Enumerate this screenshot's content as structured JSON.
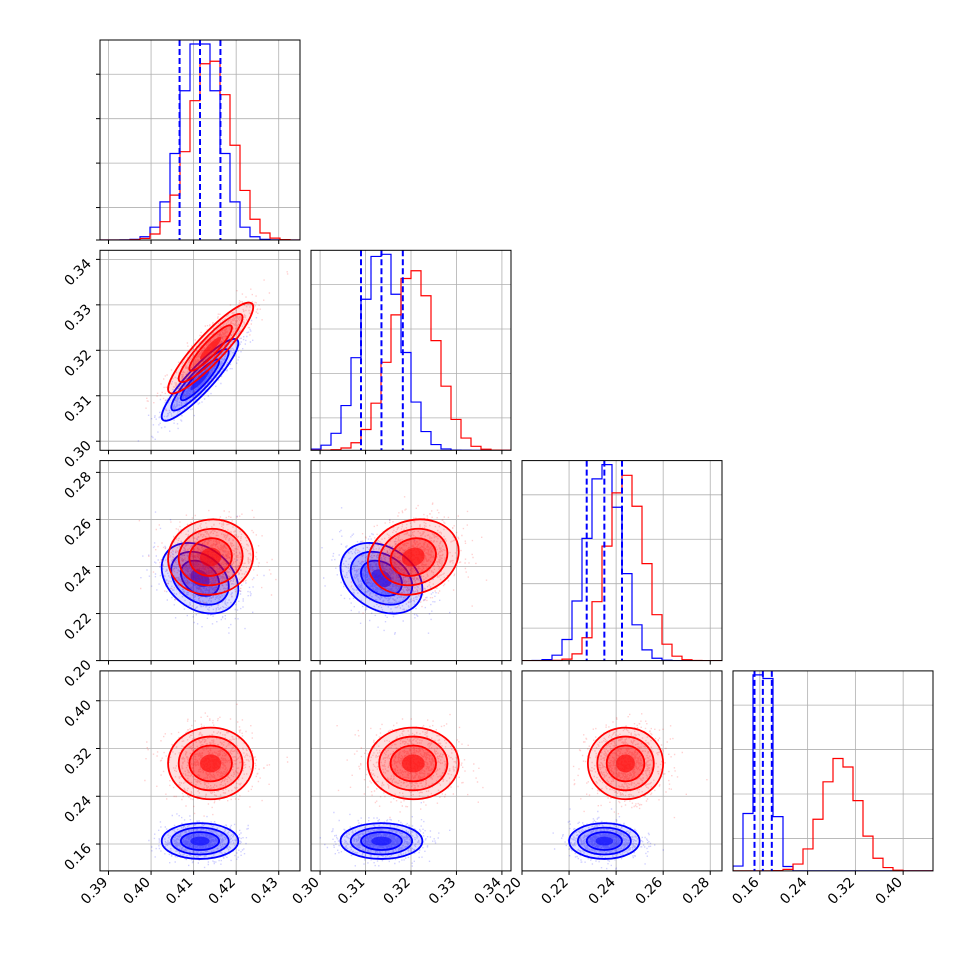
{
  "chart_data": {
    "type": "corner",
    "colors": {
      "series_a": "#0000ff",
      "series_b": "#ff0000",
      "grid": "#b0b0b0",
      "axes": "#000000"
    },
    "grid": true,
    "params": [
      {
        "range": [
          0.388,
          0.435
        ],
        "ticks": [
          "0.39",
          "0.40",
          "0.41",
          "0.42",
          "0.43"
        ],
        "tick_values": [
          0.39,
          0.4,
          0.41,
          0.42,
          0.43
        ]
      },
      {
        "range": [
          0.298,
          0.342
        ],
        "ticks": [
          "0.30",
          "0.31",
          "0.32",
          "0.33",
          "0.34"
        ],
        "tick_values": [
          0.3,
          0.31,
          0.32,
          0.33,
          0.34
        ]
      },
      {
        "range": [
          0.2,
          0.285
        ],
        "ticks": [
          "0.20",
          "0.22",
          "0.24",
          "0.26",
          "0.28"
        ],
        "tick_values": [
          0.2,
          0.22,
          0.24,
          0.26,
          0.28
        ]
      },
      {
        "range": [
          0.115,
          0.45
        ],
        "ticks": [
          "0.16",
          "0.24",
          "0.32",
          "0.40"
        ],
        "tick_values": [
          0.16,
          0.24,
          0.32,
          0.4
        ]
      }
    ],
    "series": [
      {
        "key": "series_a",
        "color": "#0000ff",
        "means": [
          0.4115,
          0.3135,
          0.235,
          0.165
        ],
        "sds": [
          0.0045,
          0.0045,
          0.0075,
          0.015
        ],
        "correlations": [
          [
            0,
            1,
            0.9
          ],
          [
            0,
            2,
            -0.3
          ],
          [
            1,
            2,
            -0.3
          ]
        ],
        "quantile_lines": [
          [
            0.4067,
            0.4115,
            0.4163
          ],
          [
            0.309,
            0.3135,
            0.3182
          ],
          [
            0.2275,
            0.235,
            0.2425
          ],
          [
            0.151,
            0.165,
            0.18
          ]
        ]
      },
      {
        "key": "series_b",
        "color": "#ff0000",
        "means": [
          0.414,
          0.3205,
          0.244,
          0.295
        ],
        "sds": [
          0.005,
          0.005,
          0.008,
          0.03
        ],
        "correlations": [
          [
            0,
            1,
            0.9
          ],
          [
            0,
            2,
            0.05
          ],
          [
            1,
            2,
            0.15
          ]
        ]
      }
    ]
  }
}
